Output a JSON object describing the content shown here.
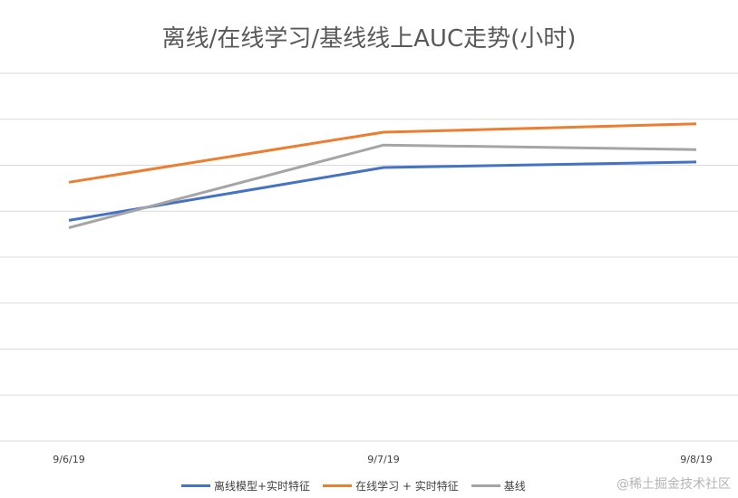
{
  "chart_data": {
    "type": "line",
    "title": "离线/在线学习/基线线上AUC走势(小时)",
    "categories": [
      "9/6/19",
      "9/7/19",
      "9/8/19"
    ],
    "series": [
      {
        "name": "离线模型+实时特征",
        "values": [
          4.8,
          5.95,
          6.07
        ],
        "color": "#4472C4"
      },
      {
        "name": "在线学习 + 实时特征",
        "values": [
          5.63,
          6.72,
          6.9
        ],
        "color": "#ED7D31"
      },
      {
        "name": "基线",
        "values": [
          4.64,
          6.44,
          6.34
        ],
        "color": "#A5A5A5"
      }
    ],
    "ylim": [
      0,
      8
    ],
    "grid": true,
    "legend_position": "bottom",
    "xlabel": "",
    "ylabel": ""
  },
  "watermark": "@稀土掘金技术社区"
}
